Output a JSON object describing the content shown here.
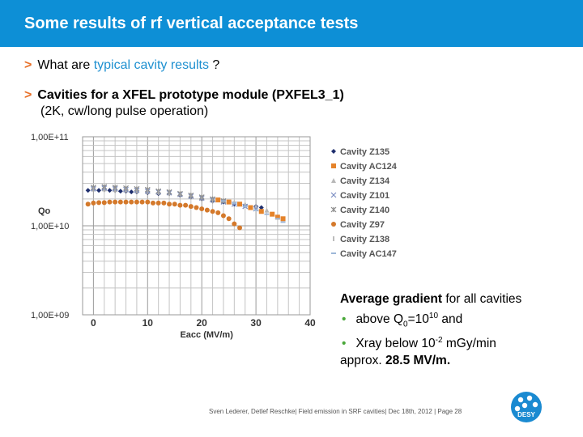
{
  "slide": {
    "title": "Some results of rf vertical acceptance tests",
    "bullet1": {
      "text": "What are ",
      "accent": "typical cavity results",
      "tail": " ?"
    },
    "bullet2": {
      "line1": "Cavities for a XFEL prototype module (PXFEL3_1)",
      "line2": "(2K, cw/long pulse operation)"
    },
    "summary": {
      "heading": "Average gradient",
      "heading_tail": " for all cavities",
      "item1_pre": "above Q",
      "item1_sub": "0",
      "item1_mid": "=10",
      "item1_sup": "10",
      "item1_post": " and",
      "item2_pre": "Xray below 10",
      "item2_sup": "-2",
      "item2_post": " mGy/min",
      "result_pre": "approx. ",
      "result_value": "28.5 MV/m."
    },
    "footer": "Sven Lederer, Detlef Reschke| Field emission in SRF cavities| Dec 18th, 2012 | Page 28",
    "logo_text": "DESY"
  },
  "chart_data": {
    "type": "scatter",
    "xlabel": "Eacc (MV/m)",
    "ylabel": "Qo",
    "x_ticks": [
      "0",
      "10",
      "20",
      "30",
      "40"
    ],
    "y_ticks": [
      "1,00E+09",
      "1,00E+10",
      "1,00E+11"
    ],
    "xlim": [
      -2,
      40
    ],
    "ylim": [
      1000000000,
      100000000000
    ],
    "yscale": "log",
    "grid": true,
    "legend_position": "right",
    "series": [
      {
        "name": "Cavity Z135",
        "marker": "diamond",
        "color": "#1f2f6e",
        "x": [
          -1,
          0,
          1,
          2,
          3,
          4,
          5,
          6,
          7,
          8,
          10,
          12,
          14,
          16,
          18,
          20,
          22,
          24,
          26,
          28,
          30,
          31
        ],
        "y": [
          25000000000.0,
          25500000000.0,
          25000000000.0,
          25500000000.0,
          25000000000.0,
          25000000000.0,
          24500000000.0,
          24500000000.0,
          24000000000.0,
          24000000000.0,
          23500000000.0,
          23000000000.0,
          23000000000.0,
          22000000000.0,
          21000000000.0,
          20000000000.0,
          19000000000.0,
          18500000000.0,
          17500000000.0,
          17000000000.0,
          16500000000.0,
          16000000000.0
        ]
      },
      {
        "name": "Cavity AC124",
        "marker": "square",
        "color": "#e5832a",
        "x": [
          23,
          25,
          27,
          29,
          31,
          33,
          34,
          35
        ],
        "y": [
          19500000000.0,
          18500000000.0,
          17500000000.0,
          16000000000.0,
          14500000000.0,
          13500000000.0,
          12500000000.0,
          12000000000.0
        ]
      },
      {
        "name": "Cavity Z134",
        "marker": "triangle",
        "color": "#b8b8b8",
        "x": [
          0,
          2,
          4,
          6,
          8,
          10,
          12,
          14,
          16,
          18,
          20,
          22,
          24,
          26,
          28,
          30,
          32
        ],
        "y": [
          26000000000.0,
          26000000000.0,
          25500000000.0,
          25500000000.0,
          25000000000.0,
          24500000000.0,
          24000000000.0,
          23500000000.0,
          23000000000.0,
          22500000000.0,
          21500000000.0,
          20500000000.0,
          19500000000.0,
          18500000000.0,
          17500000000.0,
          16500000000.0,
          15000000000.0
        ]
      },
      {
        "name": "Cavity Z101",
        "marker": "x",
        "color": "#7d8fc2",
        "x": [
          0,
          2,
          4,
          6,
          8,
          10,
          12,
          14,
          16,
          18,
          20,
          22,
          24,
          26,
          28,
          30
        ],
        "y": [
          26000000000.0,
          26500000000.0,
          26000000000.0,
          25500000000.0,
          25000000000.0,
          24500000000.0,
          24000000000.0,
          23500000000.0,
          22500000000.0,
          21500000000.0,
          20500000000.0,
          19500000000.0,
          18500000000.0,
          17500000000.0,
          16500000000.0,
          15500000000.0
        ]
      },
      {
        "name": "Cavity Z140",
        "marker": "asterisk",
        "color": "#8d8d8d",
        "x": [
          0,
          2,
          4,
          6,
          8,
          10,
          12,
          14,
          16,
          18,
          20,
          22,
          24
        ],
        "y": [
          27000000000.0,
          27500000000.0,
          27000000000.0,
          26500000000.0,
          26000000000.0,
          25500000000.0,
          24500000000.0,
          24000000000.0,
          23000000000.0,
          22000000000.0,
          21000000000.0,
          20000000000.0,
          19000000000.0
        ]
      },
      {
        "name": "Cavity Z97",
        "marker": "circle",
        "color": "#d4792b",
        "x": [
          -1,
          0,
          1,
          2,
          3,
          4,
          5,
          6,
          7,
          8,
          9,
          10,
          11,
          12,
          13,
          14,
          15,
          16,
          17,
          18,
          19,
          20,
          21,
          22,
          23,
          24,
          25,
          26,
          27
        ],
        "y": [
          17500000000.0,
          18000000000.0,
          18200000000.0,
          18200000000.0,
          18500000000.0,
          18500000000.0,
          18500000000.0,
          18500000000.0,
          18500000000.0,
          18500000000.0,
          18500000000.0,
          18500000000.0,
          18000000000.0,
          18000000000.0,
          18000000000.0,
          17500000000.0,
          17500000000.0,
          17000000000.0,
          17000000000.0,
          16500000000.0,
          16000000000.0,
          15500000000.0,
          15000000000.0,
          14500000000.0,
          14000000000.0,
          13000000000.0,
          12000000000.0,
          10500000000.0,
          9500000000.0
        ]
      },
      {
        "name": "Cavity Z138",
        "marker": "bar",
        "color": "#a6a6a6",
        "x": [
          0,
          2,
          4,
          6,
          8,
          10,
          12,
          14,
          16,
          18,
          20,
          22
        ],
        "y": [
          25500000000.0,
          25500000000.0,
          25000000000.0,
          25000000000.0,
          24500000000.0,
          24000000000.0,
          23500000000.0,
          23000000000.0,
          22000000000.0,
          21000000000.0,
          20000000000.0,
          19000000000.0
        ]
      },
      {
        "name": "Cavity AC147",
        "marker": "dash",
        "color": "#9db7d8",
        "x": [
          24,
          26,
          28,
          30,
          32,
          34,
          35
        ],
        "y": [
          19000000000.0,
          18000000000.0,
          16500000000.0,
          15000000000.0,
          13500000000.0,
          12000000000.0,
          11000000000.0
        ]
      }
    ]
  }
}
